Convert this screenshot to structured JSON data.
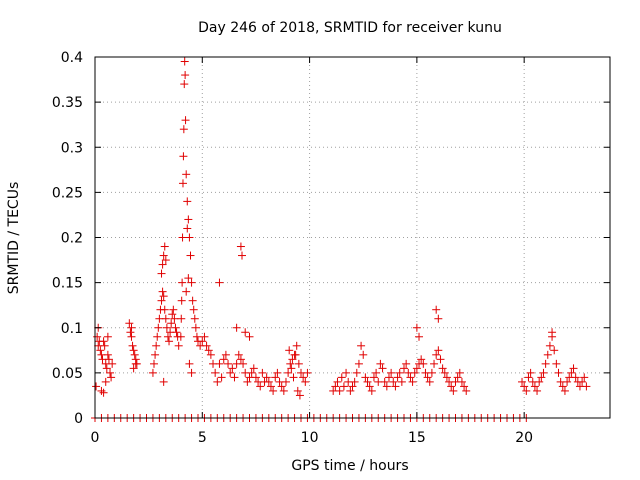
{
  "chart_data": {
    "type": "scatter",
    "title": "Day 246 of 2018, SRMTID for receiver kunu",
    "xlabel": "GPS time / hours",
    "ylabel": "SRMTID / TECUs",
    "xlim": [
      0,
      24
    ],
    "ylim": [
      0,
      0.4
    ],
    "xticks": [
      0,
      5,
      10,
      15,
      20
    ],
    "xtick_labels": [
      "0",
      "5",
      "10",
      "15",
      "20"
    ],
    "yticks": [
      0,
      0.05,
      0.1,
      0.15,
      0.2,
      0.25,
      0.3,
      0.35,
      0.4
    ],
    "ytick_labels": [
      "0",
      "0.05",
      "0.1",
      "0.15",
      "0.2",
      "0.25",
      "0.3",
      "0.35",
      "0.4"
    ],
    "grid": true,
    "marker": "+",
    "series_color": "#e00000",
    "series": [
      {
        "name": "SRMTID",
        "x": [
          0.05,
          0.1,
          0.15,
          0.2,
          0.25,
          0.3,
          0.35,
          0.4,
          0.45,
          0.5,
          0.55,
          0.6,
          0.65,
          0.7,
          0.75,
          0.8,
          0.3,
          0.4,
          0.5,
          0.15,
          0.6,
          1.6,
          1.65,
          1.7,
          1.75,
          1.8,
          1.85,
          1.9,
          1.95,
          1.7,
          1.8,
          1.9,
          2.7,
          2.75,
          2.8,
          2.85,
          2.9,
          2.95,
          3.0,
          3.05,
          3.1,
          3.15,
          3.2,
          3.25,
          3.3,
          3.35,
          3.4,
          3.45,
          3.5,
          3.55,
          3.6,
          3.65,
          3.7,
          3.75,
          3.8,
          3.85,
          3.9,
          3.1,
          3.2,
          3.15,
          3.25,
          3.3,
          3.2,
          4.0,
          4.02,
          4.04,
          4.06,
          4.08,
          4.1,
          4.12,
          4.14,
          4.16,
          4.18,
          4.2,
          4.22,
          4.25,
          4.3,
          4.35,
          4.4,
          4.45,
          4.5,
          4.55,
          4.6,
          4.65,
          4.7,
          4.75,
          4.8,
          4.3,
          4.35,
          4.25,
          4.4,
          4.5,
          4.9,
          5.0,
          5.1,
          5.2,
          5.3,
          5.4,
          5.5,
          5.6,
          5.7,
          5.8,
          5.9,
          6.0,
          6.1,
          6.2,
          6.3,
          6.4,
          6.5,
          6.6,
          6.7,
          6.8,
          6.9,
          7.0,
          7.1,
          7.2,
          7.3,
          7.4,
          7.5,
          7.6,
          7.7,
          7.8,
          7.9,
          8.0,
          5.8,
          6.6,
          6.8,
          6.85,
          7.2,
          7.0,
          8.1,
          8.2,
          8.3,
          8.4,
          8.5,
          8.6,
          8.7,
          8.8,
          8.9,
          9.0,
          9.1,
          9.2,
          9.3,
          9.4,
          9.5,
          9.6,
          9.7,
          9.8,
          9.9,
          9.05,
          9.15,
          9.25,
          9.35,
          9.45,
          9.55,
          11.1,
          11.2,
          11.3,
          11.4,
          11.5,
          11.6,
          11.7,
          11.8,
          11.9,
          12.0,
          12.1,
          12.2,
          12.3,
          12.4,
          12.5,
          12.6,
          12.7,
          12.8,
          12.9,
          13.0,
          13.1,
          13.2,
          13.3,
          13.4,
          13.5,
          13.6,
          13.7,
          13.8,
          13.9,
          14.0,
          14.1,
          14.2,
          14.3,
          14.4,
          14.5,
          14.6,
          14.7,
          14.8,
          14.9,
          15.0,
          15.1,
          15.2,
          15.3,
          15.4,
          15.5,
          15.6,
          15.7,
          15.8,
          15.9,
          16.0,
          16.1,
          16.2,
          16.3,
          16.4,
          16.5,
          16.6,
          16.7,
          16.8,
          16.9,
          17.0,
          17.1,
          17.2,
          17.3,
          15.0,
          15.1,
          15.9,
          16.0,
          19.9,
          20.0,
          20.1,
          20.2,
          20.3,
          20.4,
          20.5,
          20.6,
          20.7,
          20.8,
          20.9,
          21.0,
          21.1,
          21.2,
          21.3,
          21.4,
          21.5,
          21.6,
          21.7,
          21.8,
          21.9,
          22.0,
          22.1,
          22.2,
          22.3,
          22.4,
          22.5,
          22.6,
          22.7,
          22.8,
          22.9,
          21.3,
          0.0,
          0.3,
          0.6,
          0.9,
          1.2,
          1.5,
          1.8,
          2.1,
          2.4,
          2.7,
          3.0,
          3.3,
          3.6,
          3.9,
          4.2,
          4.5,
          4.8,
          5.1,
          5.4,
          5.7,
          6.0,
          6.3,
          6.6,
          6.9,
          7.2,
          7.5,
          7.8,
          8.1,
          8.4,
          8.7,
          9.0,
          9.3,
          9.6,
          9.9,
          10.2,
          10.5,
          10.8,
          11.1,
          11.4,
          11.7,
          12.0,
          12.3,
          12.6,
          12.9,
          13.2,
          13.5,
          13.8,
          14.1,
          14.4,
          14.7,
          15.0,
          15.3,
          15.6,
          15.9,
          16.2,
          16.5,
          16.8,
          17.1,
          17.4,
          17.7,
          18.0,
          18.3,
          18.6,
          18.9,
          19.2,
          19.5,
          19.8,
          20.1
        ],
        "y": [
          0.035,
          0.09,
          0.1,
          0.085,
          0.075,
          0.07,
          0.065,
          0.085,
          0.08,
          0.06,
          0.055,
          0.07,
          0.065,
          0.05,
          0.045,
          0.06,
          0.03,
          0.028,
          0.04,
          0.08,
          0.09,
          0.105,
          0.095,
          0.09,
          0.08,
          0.075,
          0.07,
          0.065,
          0.06,
          0.1,
          0.055,
          0.06,
          0.05,
          0.06,
          0.07,
          0.08,
          0.09,
          0.1,
          0.11,
          0.12,
          0.13,
          0.14,
          0.135,
          0.12,
          0.11,
          0.1,
          0.09,
          0.085,
          0.095,
          0.105,
          0.115,
          0.12,
          0.11,
          0.1,
          0.095,
          0.09,
          0.08,
          0.16,
          0.18,
          0.17,
          0.19,
          0.175,
          0.04,
          0.09,
          0.11,
          0.13,
          0.15,
          0.2,
          0.26,
          0.29,
          0.32,
          0.37,
          0.395,
          0.38,
          0.33,
          0.27,
          0.24,
          0.22,
          0.2,
          0.18,
          0.15,
          0.13,
          0.12,
          0.11,
          0.1,
          0.09,
          0.085,
          0.21,
          0.155,
          0.14,
          0.06,
          0.05,
          0.08,
          0.085,
          0.09,
          0.08,
          0.075,
          0.07,
          0.06,
          0.05,
          0.04,
          0.06,
          0.045,
          0.065,
          0.07,
          0.06,
          0.05,
          0.055,
          0.045,
          0.06,
          0.07,
          0.065,
          0.06,
          0.05,
          0.04,
          0.045,
          0.05,
          0.055,
          0.045,
          0.04,
          0.035,
          0.05,
          0.04,
          0.045,
          0.15,
          0.1,
          0.19,
          0.18,
          0.09,
          0.095,
          0.04,
          0.035,
          0.03,
          0.045,
          0.05,
          0.04,
          0.035,
          0.03,
          0.04,
          0.05,
          0.06,
          0.065,
          0.07,
          0.08,
          0.06,
          0.05,
          0.045,
          0.04,
          0.05,
          0.075,
          0.055,
          0.045,
          0.07,
          0.03,
          0.025,
          0.03,
          0.035,
          0.04,
          0.03,
          0.045,
          0.035,
          0.05,
          0.04,
          0.03,
          0.035,
          0.04,
          0.05,
          0.06,
          0.08,
          0.07,
          0.045,
          0.04,
          0.035,
          0.03,
          0.045,
          0.05,
          0.04,
          0.06,
          0.055,
          0.04,
          0.035,
          0.045,
          0.05,
          0.04,
          0.035,
          0.045,
          0.05,
          0.04,
          0.055,
          0.06,
          0.05,
          0.045,
          0.04,
          0.05,
          0.055,
          0.06,
          0.065,
          0.06,
          0.05,
          0.045,
          0.04,
          0.05,
          0.06,
          0.07,
          0.075,
          0.065,
          0.055,
          0.05,
          0.045,
          0.04,
          0.035,
          0.03,
          0.04,
          0.045,
          0.05,
          0.04,
          0.035,
          0.03,
          0.1,
          0.09,
          0.12,
          0.11,
          0.04,
          0.035,
          0.03,
          0.045,
          0.05,
          0.04,
          0.035,
          0.03,
          0.04,
          0.045,
          0.05,
          0.06,
          0.07,
          0.08,
          0.09,
          0.075,
          0.06,
          0.05,
          0.04,
          0.035,
          0.03,
          0.04,
          0.045,
          0.05,
          0.055,
          0.045,
          0.04,
          0.035,
          0.04,
          0.045,
          0.035,
          0.095,
          0,
          0,
          0,
          0,
          0,
          0,
          0,
          0,
          0,
          0,
          0,
          0,
          0,
          0,
          0,
          0,
          0,
          0,
          0,
          0,
          0,
          0,
          0,
          0,
          0,
          0,
          0,
          0,
          0,
          0,
          0,
          0,
          0,
          0,
          0,
          0,
          0,
          0,
          0,
          0,
          0,
          0,
          0,
          0,
          0,
          0,
          0,
          0,
          0,
          0,
          0,
          0,
          0,
          0,
          0,
          0,
          0,
          0,
          0,
          0,
          0,
          0,
          0,
          0,
          0,
          0,
          0,
          0
        ]
      }
    ]
  }
}
